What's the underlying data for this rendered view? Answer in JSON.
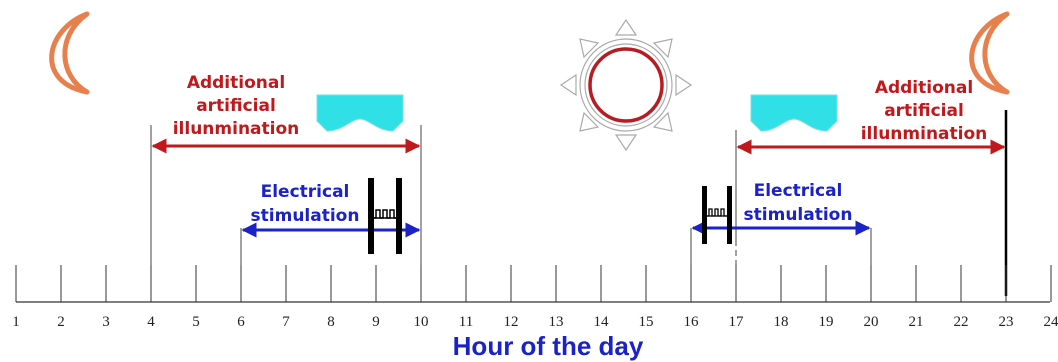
{
  "timeline": {
    "hours": [
      "1",
      "2",
      "3",
      "4",
      "5",
      "6",
      "7",
      "8",
      "9",
      "10",
      "11",
      "12",
      "13",
      "14",
      "15",
      "16",
      "17",
      "18",
      "19",
      "20",
      "21",
      "22",
      "23",
      "24"
    ],
    "axis_title": "Hour of the day"
  },
  "morning": {
    "illumination_label": [
      "Additional",
      "artificial",
      "illunmination"
    ],
    "illumination_range": [
      4,
      10
    ],
    "stimulation_label": [
      "Electrical",
      "stimulation"
    ],
    "stimulation_range": [
      6,
      10
    ]
  },
  "evening": {
    "illumination_label": [
      "Additional",
      "artificial",
      "illunmination"
    ],
    "illumination_range": [
      17,
      23
    ],
    "stimulation_label": [
      "Electrical",
      "stimulation"
    ],
    "stimulation_range": [
      16,
      20
    ]
  },
  "colors": {
    "illumination": "#c0191c",
    "stimulation": "#1a22c8",
    "lamp": "#2fe0e6",
    "moon": "#e8804e",
    "sun_ring": "#b81c22"
  },
  "icons": [
    "moon-icon",
    "sun-icon",
    "lamp-icon",
    "stimulator-icon"
  ]
}
